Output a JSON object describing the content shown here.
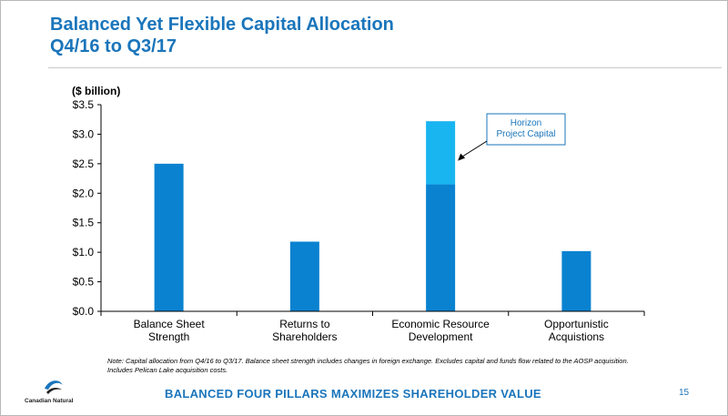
{
  "header": {
    "title_line1": "Balanced Yet Flexible Capital Allocation",
    "title_line2": "Q4/16 to Q3/17"
  },
  "colors": {
    "accent": "#1a75bb",
    "bar_main": "#0a82d0",
    "bar_stack": "#19b5f0",
    "callout_border": "#1a75bb"
  },
  "chart_data": {
    "type": "bar",
    "stacked": true,
    "ylabel": "($ billion)",
    "ylim": [
      0,
      3.5
    ],
    "y_ticks": [
      "$0.0",
      "$0.5",
      "$1.0",
      "$1.5",
      "$2.0",
      "$2.5",
      "$3.0",
      "$3.5"
    ],
    "y_tick_values": [
      0,
      0.5,
      1.0,
      1.5,
      2.0,
      2.5,
      3.0,
      3.5
    ],
    "categories": [
      [
        "Balance Sheet",
        "Strength"
      ],
      [
        "Returns to",
        "Shareholders"
      ],
      [
        "Economic Resource",
        "Development"
      ],
      [
        "Opportunistic",
        "Acquistions"
      ]
    ],
    "series": [
      {
        "values": [
          2.5,
          1.18,
          2.15,
          1.02
        ]
      },
      {
        "name": "Horizon Project Capital",
        "values": [
          0,
          0,
          1.07,
          0
        ]
      }
    ],
    "annotation": {
      "lines": [
        "Horizon",
        "Project Capital"
      ],
      "target_category": 2
    },
    "grid": false,
    "legend": "none"
  },
  "note": {
    "text": "Note: Capital allocation from Q4/16 to Q3/17. Balance sheet strength includes changes in foreign exchange. Excludes capital and funds flow related to the AOSP acquisition. Includes Pelican Lake acquisition costs."
  },
  "footer": {
    "tagline": "BALANCED FOUR PILLARS MAXIMIZES SHAREHOLDER VALUE",
    "page_number": "15",
    "logo_text": "Canadian Natural"
  }
}
